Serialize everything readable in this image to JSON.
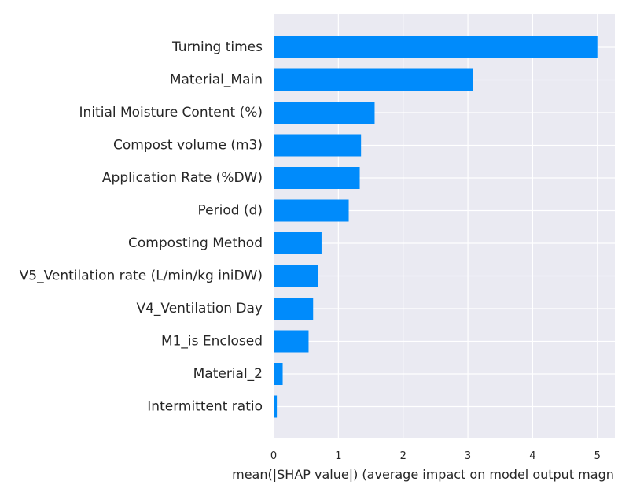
{
  "chart_data": {
    "type": "bar",
    "orientation": "horizontal",
    "categories": [
      "Turning times",
      "Material_Main",
      "Initial Moisture Content (%)",
      "Compost volume (m3)",
      "Application Rate (%DW)",
      "Period (d)",
      "Composting Method",
      "V5_Ventilation rate (L/min/kg iniDW)",
      "V4_Ventilation Day",
      "M1_is Enclosed",
      "Material_2",
      "Intermittent ratio"
    ],
    "values": [
      5.0,
      3.08,
      1.56,
      1.35,
      1.33,
      1.16,
      0.74,
      0.68,
      0.61,
      0.54,
      0.14,
      0.05
    ],
    "xlabel": "mean(|SHAP value|) (average impact on model output magn",
    "ylabel": "",
    "title": "",
    "xlim": [
      0,
      5.27
    ],
    "xticks": [
      0,
      1,
      2,
      3,
      4,
      5
    ],
    "grid": true,
    "legend": "none",
    "colors": {
      "bar": "#008bfb",
      "plot_background": "#eaeaf2",
      "grid": "#ffffff",
      "text": "#262626"
    }
  }
}
